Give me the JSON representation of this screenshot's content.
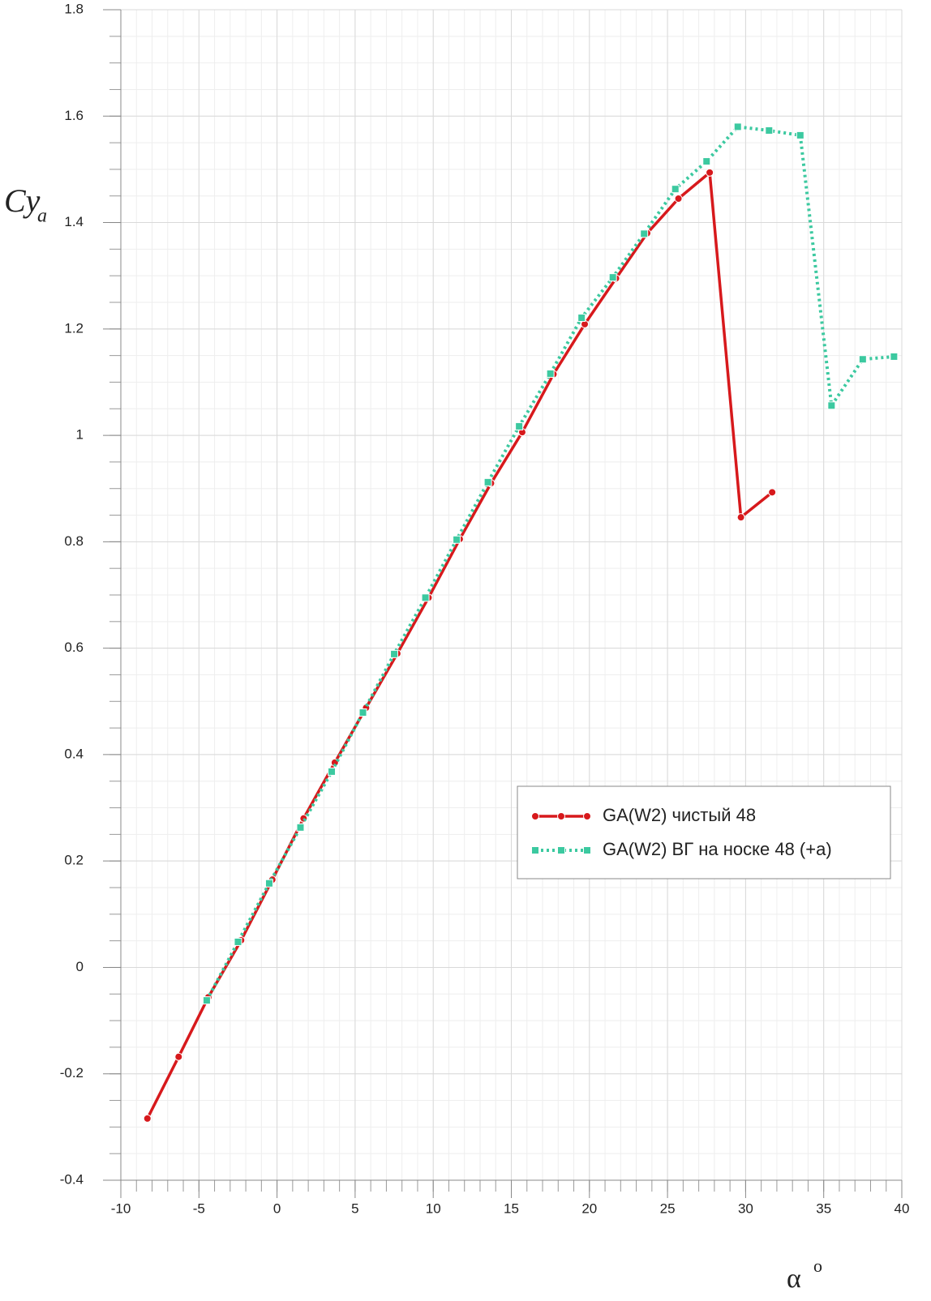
{
  "chart_data": {
    "type": "line",
    "x_label": "α",
    "x_label_sup": "o",
    "y_label": "Cy",
    "y_label_sub": "a",
    "xlim": [
      -10,
      40
    ],
    "xticks": [
      -10,
      -5,
      0,
      5,
      10,
      15,
      20,
      25,
      30,
      35,
      40
    ],
    "ylim": [
      -0.4,
      1.8
    ],
    "yticks": [
      -0.4,
      -0.2,
      0,
      0.2,
      0.4,
      0.6,
      0.8,
      1,
      1.2,
      1.4,
      1.6,
      1.8
    ],
    "x_minor_step": 1,
    "y_minor_step": 0.05,
    "grid": true,
    "legend": "lower right",
    "series": [
      {
        "name": "GA(W2) чистый 48",
        "color": "#d7191c",
        "marker": "circle",
        "line": "solid",
        "x": [
          -8.3,
          -6.3,
          -4.4,
          -2.3,
          -0.3,
          1.7,
          3.7,
          5.7,
          7.7,
          9.7,
          11.7,
          13.7,
          15.7,
          17.7,
          19.7,
          21.7,
          23.7,
          25.7,
          27.7,
          29.7,
          31.7
        ],
        "values": [
          -0.284,
          -0.168,
          -0.056,
          0.051,
          0.165,
          0.28,
          0.385,
          0.488,
          0.59,
          0.695,
          0.805,
          0.91,
          1.006,
          1.115,
          1.209,
          1.295,
          1.38,
          1.445,
          1.494,
          0.846,
          0.893
        ]
      },
      {
        "name": "GA(W2) ВГ на носке 48 (+a)",
        "color": "#3cc9a0",
        "marker": "square",
        "line": "dotted",
        "x": [
          -4.5,
          -2.5,
          -0.5,
          1.5,
          3.5,
          5.5,
          7.5,
          9.5,
          11.5,
          13.5,
          15.5,
          17.5,
          19.5,
          21.5,
          23.5,
          25.5,
          27.5,
          29.5,
          31.5,
          33.5,
          35.5,
          37.5,
          39.5
        ],
        "values": [
          -0.062,
          0.048,
          0.158,
          0.263,
          0.368,
          0.479,
          0.589,
          0.695,
          0.804,
          0.912,
          1.017,
          1.116,
          1.221,
          1.297,
          1.379,
          1.463,
          1.515,
          1.58,
          1.573,
          1.564,
          1.056,
          1.143,
          1.148
        ]
      }
    ]
  }
}
